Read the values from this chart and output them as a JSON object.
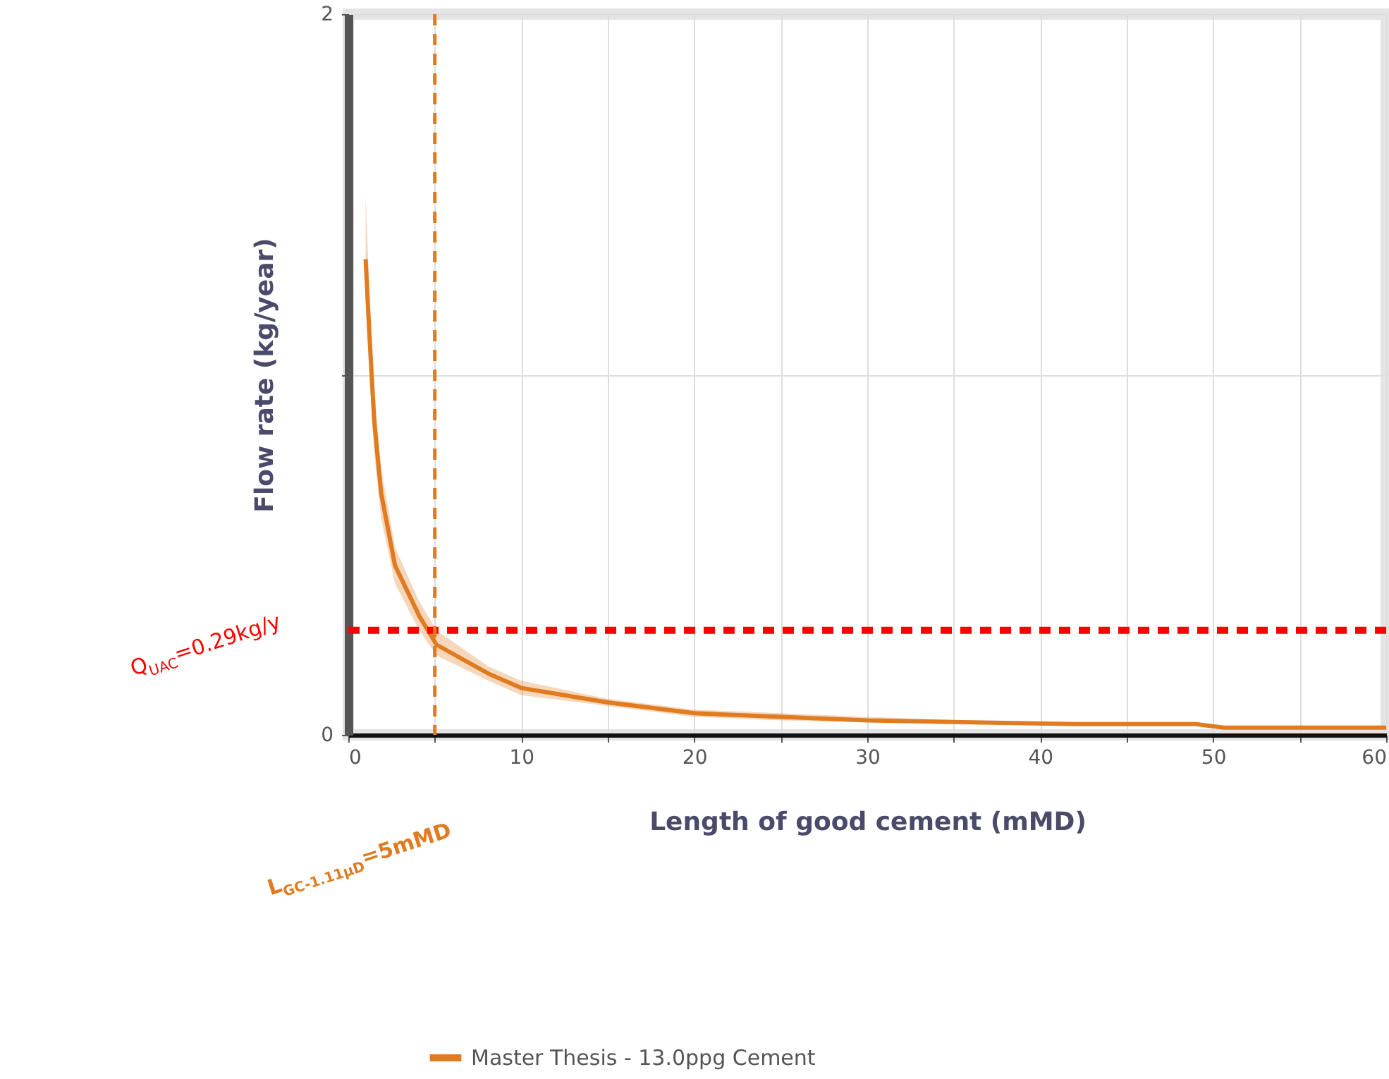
{
  "chart_data": {
    "type": "line",
    "xlabel": "Length of good cement (mMD)",
    "ylabel": "Flow rate (kg/year)",
    "xlim": [
      0,
      60
    ],
    "ylim": [
      0,
      2
    ],
    "xticks": [
      0,
      {
        "value": 5,
        "label": null
      },
      10,
      {
        "value": 15,
        "label": null
      },
      20,
      {
        "value": 25,
        "label": null
      },
      30,
      {
        "value": 35,
        "label": null
      },
      40,
      {
        "value": 45,
        "label": null
      },
      50,
      {
        "value": 55,
        "label": null
      },
      60
    ],
    "yticks": [
      0,
      {
        "value": 1,
        "label": null
      },
      2
    ],
    "grid": true,
    "legend": "bottom",
    "line_style": "solid",
    "marker": "none",
    "series": [
      {
        "name": "Master Thesis - 13.0ppg Cement",
        "color": "#e07b20",
        "x": [
          1,
          1.2,
          1.5,
          1.9,
          2.7,
          4.1,
          5.1,
          8.1,
          10,
          15,
          20,
          25,
          30,
          35.5,
          42,
          49,
          50.6,
          60
        ],
        "values": [
          1.32,
          1.13,
          0.87,
          0.67,
          0.47,
          0.33,
          0.25,
          0.17,
          0.13,
          0.09,
          0.06,
          0.05,
          0.04,
          0.035,
          0.03,
          0.03,
          0.02,
          0.02
        ],
        "upper": [
          1.5,
          1.25,
          0.96,
          0.74,
          0.52,
          0.37,
          0.29,
          0.19,
          0.15,
          0.1,
          0.07,
          0.06,
          0.05,
          0.04,
          0.035,
          0.035,
          0.025,
          0.025
        ],
        "lower": [
          1.2,
          1.01,
          0.78,
          0.6,
          0.42,
          0.29,
          0.22,
          0.15,
          0.11,
          0.08,
          0.05,
          0.04,
          0.035,
          0.03,
          0.025,
          0.025,
          0.015,
          0.015
        ]
      }
    ],
    "ref_lines": [
      {
        "axis": "y",
        "value": 0.29,
        "label": "Q$_{UAC}$=0.29kg/y",
        "color": "#ff0000",
        "line_style": "dashed"
      },
      {
        "axis": "x",
        "value": 5,
        "label": "L$_{GC-1.11µD}$=5mMD",
        "color": "#e07b20",
        "line_style": "dashed"
      }
    ]
  }
}
